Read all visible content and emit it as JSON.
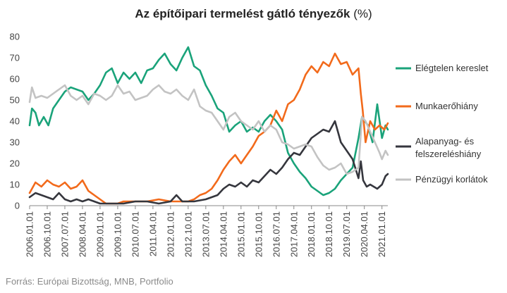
{
  "chart_data": {
    "type": "line",
    "title": "Az építőipari termelést gátló tényezők",
    "title_unit": "(%)",
    "source": "Forrás: Európai Bizottság, MNB, Portfolio",
    "xlabel": "",
    "ylabel": "",
    "ylim": [
      0,
      80
    ],
    "yticks": [
      0,
      10,
      20,
      30,
      40,
      50,
      60,
      70,
      80
    ],
    "xlim": [
      2006.0,
      2021.25
    ],
    "xticks": [
      "2006.01.01",
      "2006.10.01",
      "2007.07.01",
      "2008.04.01",
      "2009.01.01",
      "2009.10.01",
      "2010.07.01",
      "2011.04.01",
      "2012.01.01",
      "2012.10.01",
      "2013.07.01",
      "2014.04.01",
      "2015.01.01",
      "2015.10.01",
      "2016.07.01",
      "2017.04.01",
      "2018.01.01",
      "2018.10.01",
      "2019.07.01",
      "2020.04.01",
      "2021.01.01"
    ],
    "grid": false,
    "legend_position": "right",
    "series": [
      {
        "name": "Elégtelen kereslet",
        "color": "#1aa37a",
        "points": [
          [
            2006.0,
            38
          ],
          [
            2006.1,
            46
          ],
          [
            2006.25,
            44
          ],
          [
            2006.4,
            38
          ],
          [
            2006.6,
            42
          ],
          [
            2006.8,
            38
          ],
          [
            2007.0,
            46
          ],
          [
            2007.25,
            50
          ],
          [
            2007.5,
            54
          ],
          [
            2007.75,
            56
          ],
          [
            2008.0,
            55
          ],
          [
            2008.25,
            54
          ],
          [
            2008.5,
            50
          ],
          [
            2008.75,
            53
          ],
          [
            2009.0,
            57
          ],
          [
            2009.25,
            63
          ],
          [
            2009.5,
            65
          ],
          [
            2009.75,
            58
          ],
          [
            2010.0,
            63
          ],
          [
            2010.25,
            60
          ],
          [
            2010.5,
            63
          ],
          [
            2010.75,
            58
          ],
          [
            2011.0,
            64
          ],
          [
            2011.25,
            65
          ],
          [
            2011.5,
            69
          ],
          [
            2011.75,
            72
          ],
          [
            2012.0,
            67
          ],
          [
            2012.25,
            64
          ],
          [
            2012.5,
            70
          ],
          [
            2012.75,
            75
          ],
          [
            2013.0,
            66
          ],
          [
            2013.25,
            64
          ],
          [
            2013.5,
            57
          ],
          [
            2013.75,
            52
          ],
          [
            2014.0,
            46
          ],
          [
            2014.25,
            44
          ],
          [
            2014.5,
            35
          ],
          [
            2014.75,
            38
          ],
          [
            2015.0,
            40
          ],
          [
            2015.25,
            35
          ],
          [
            2015.5,
            37
          ],
          [
            2015.75,
            35
          ],
          [
            2016.0,
            40
          ],
          [
            2016.25,
            43
          ],
          [
            2016.5,
            40
          ],
          [
            2016.75,
            36
          ],
          [
            2017.0,
            25
          ],
          [
            2017.25,
            20
          ],
          [
            2017.5,
            16
          ],
          [
            2017.75,
            13
          ],
          [
            2018.0,
            9
          ],
          [
            2018.25,
            7
          ],
          [
            2018.5,
            5
          ],
          [
            2018.75,
            6
          ],
          [
            2019.0,
            8
          ],
          [
            2019.25,
            12
          ],
          [
            2019.5,
            15
          ],
          [
            2019.75,
            18
          ],
          [
            2020.0,
            32
          ],
          [
            2020.15,
            42
          ],
          [
            2020.4,
            38
          ],
          [
            2020.6,
            30
          ],
          [
            2020.8,
            48
          ],
          [
            2021.0,
            32
          ],
          [
            2021.15,
            38
          ],
          [
            2021.25,
            36
          ]
        ]
      },
      {
        "name": "Munkaerőhiány",
        "color": "#f26a1b",
        "points": [
          [
            2006.0,
            6
          ],
          [
            2006.25,
            11
          ],
          [
            2006.5,
            9
          ],
          [
            2006.75,
            12
          ],
          [
            2007.0,
            10
          ],
          [
            2007.25,
            9
          ],
          [
            2007.5,
            11
          ],
          [
            2007.75,
            8
          ],
          [
            2008.0,
            9
          ],
          [
            2008.25,
            12
          ],
          [
            2008.5,
            7
          ],
          [
            2008.75,
            5
          ],
          [
            2009.0,
            3
          ],
          [
            2009.25,
            1
          ],
          [
            2009.5,
            1
          ],
          [
            2009.75,
            1
          ],
          [
            2010.0,
            2
          ],
          [
            2010.5,
            2
          ],
          [
            2011.0,
            2
          ],
          [
            2011.5,
            3
          ],
          [
            2012.0,
            2
          ],
          [
            2012.5,
            2
          ],
          [
            2012.75,
            2
          ],
          [
            2013.0,
            3
          ],
          [
            2013.25,
            5
          ],
          [
            2013.5,
            6
          ],
          [
            2013.75,
            8
          ],
          [
            2014.0,
            12
          ],
          [
            2014.25,
            17
          ],
          [
            2014.5,
            21
          ],
          [
            2014.75,
            24
          ],
          [
            2015.0,
            20
          ],
          [
            2015.25,
            24
          ],
          [
            2015.5,
            28
          ],
          [
            2015.75,
            33
          ],
          [
            2016.0,
            35
          ],
          [
            2016.25,
            38
          ],
          [
            2016.5,
            45
          ],
          [
            2016.75,
            40
          ],
          [
            2017.0,
            48
          ],
          [
            2017.25,
            50
          ],
          [
            2017.5,
            55
          ],
          [
            2017.75,
            62
          ],
          [
            2018.0,
            66
          ],
          [
            2018.25,
            63
          ],
          [
            2018.5,
            68
          ],
          [
            2018.75,
            66
          ],
          [
            2019.0,
            72
          ],
          [
            2019.25,
            67
          ],
          [
            2019.5,
            68
          ],
          [
            2019.75,
            62
          ],
          [
            2020.0,
            65
          ],
          [
            2020.1,
            53
          ],
          [
            2020.18,
            45
          ],
          [
            2020.3,
            30
          ],
          [
            2020.5,
            40
          ],
          [
            2020.7,
            36
          ],
          [
            2020.9,
            38
          ],
          [
            2021.1,
            36
          ],
          [
            2021.25,
            39
          ]
        ]
      },
      {
        "name": "Alapanyag- és felszereléshiány",
        "color": "#35363d",
        "points": [
          [
            2006.0,
            4
          ],
          [
            2006.25,
            6
          ],
          [
            2006.5,
            5
          ],
          [
            2006.75,
            4
          ],
          [
            2007.0,
            3
          ],
          [
            2007.25,
            6
          ],
          [
            2007.5,
            3
          ],
          [
            2007.75,
            2
          ],
          [
            2008.0,
            3
          ],
          [
            2008.25,
            2
          ],
          [
            2008.5,
            3
          ],
          [
            2008.75,
            2
          ],
          [
            2009.0,
            1
          ],
          [
            2009.5,
            1
          ],
          [
            2010.0,
            1
          ],
          [
            2010.5,
            2
          ],
          [
            2011.0,
            2
          ],
          [
            2011.5,
            1
          ],
          [
            2012.0,
            2
          ],
          [
            2012.25,
            5
          ],
          [
            2012.5,
            2
          ],
          [
            2013.0,
            2
          ],
          [
            2013.5,
            3
          ],
          [
            2014.0,
            5
          ],
          [
            2014.25,
            8
          ],
          [
            2014.5,
            10
          ],
          [
            2014.75,
            9
          ],
          [
            2015.0,
            11
          ],
          [
            2015.25,
            9
          ],
          [
            2015.5,
            12
          ],
          [
            2015.75,
            11
          ],
          [
            2016.0,
            14
          ],
          [
            2016.25,
            17
          ],
          [
            2016.5,
            15
          ],
          [
            2016.75,
            18
          ],
          [
            2017.0,
            22
          ],
          [
            2017.25,
            25
          ],
          [
            2017.5,
            24
          ],
          [
            2017.75,
            28
          ],
          [
            2018.0,
            32
          ],
          [
            2018.25,
            34
          ],
          [
            2018.5,
            36
          ],
          [
            2018.75,
            35
          ],
          [
            2019.0,
            40
          ],
          [
            2019.25,
            30
          ],
          [
            2019.5,
            26
          ],
          [
            2019.75,
            22
          ],
          [
            2020.0,
            13
          ],
          [
            2020.1,
            21
          ],
          [
            2020.2,
            12
          ],
          [
            2020.35,
            9
          ],
          [
            2020.5,
            10
          ],
          [
            2020.8,
            8
          ],
          [
            2021.0,
            10
          ],
          [
            2021.15,
            14
          ],
          [
            2021.25,
            15
          ]
        ]
      },
      {
        "name": "Pénzügyi korlátok",
        "color": "#c3c3c3",
        "points": [
          [
            2006.0,
            49
          ],
          [
            2006.1,
            56
          ],
          [
            2006.25,
            51
          ],
          [
            2006.5,
            52
          ],
          [
            2006.75,
            51
          ],
          [
            2007.0,
            53
          ],
          [
            2007.25,
            55
          ],
          [
            2007.5,
            57
          ],
          [
            2007.75,
            52
          ],
          [
            2008.0,
            50
          ],
          [
            2008.25,
            52
          ],
          [
            2008.5,
            48
          ],
          [
            2008.75,
            53
          ],
          [
            2009.0,
            52
          ],
          [
            2009.25,
            50
          ],
          [
            2009.5,
            52
          ],
          [
            2009.75,
            57
          ],
          [
            2010.0,
            53
          ],
          [
            2010.25,
            54
          ],
          [
            2010.5,
            50
          ],
          [
            2010.75,
            51
          ],
          [
            2011.0,
            52
          ],
          [
            2011.25,
            55
          ],
          [
            2011.5,
            57
          ],
          [
            2011.75,
            54
          ],
          [
            2012.0,
            53
          ],
          [
            2012.25,
            55
          ],
          [
            2012.5,
            52
          ],
          [
            2012.75,
            50
          ],
          [
            2013.0,
            55
          ],
          [
            2013.25,
            47
          ],
          [
            2013.5,
            45
          ],
          [
            2013.75,
            44
          ],
          [
            2014.0,
            40
          ],
          [
            2014.25,
            36
          ],
          [
            2014.5,
            42
          ],
          [
            2014.75,
            44
          ],
          [
            2015.0,
            40
          ],
          [
            2015.25,
            38
          ],
          [
            2015.5,
            36
          ],
          [
            2015.75,
            40
          ],
          [
            2016.0,
            35
          ],
          [
            2016.25,
            38
          ],
          [
            2016.5,
            36
          ],
          [
            2016.75,
            30
          ],
          [
            2017.0,
            29
          ],
          [
            2017.25,
            27
          ],
          [
            2017.5,
            28
          ],
          [
            2017.75,
            29
          ],
          [
            2018.0,
            28
          ],
          [
            2018.25,
            23
          ],
          [
            2018.5,
            19
          ],
          [
            2018.75,
            17
          ],
          [
            2019.0,
            18
          ],
          [
            2019.25,
            20
          ],
          [
            2019.5,
            15
          ],
          [
            2019.75,
            16
          ],
          [
            2020.0,
            18
          ],
          [
            2020.15,
            42
          ],
          [
            2020.3,
            40
          ],
          [
            2020.5,
            35
          ],
          [
            2020.7,
            30
          ],
          [
            2020.9,
            25
          ],
          [
            2021.0,
            22
          ],
          [
            2021.15,
            26
          ],
          [
            2021.25,
            24
          ]
        ]
      }
    ]
  }
}
